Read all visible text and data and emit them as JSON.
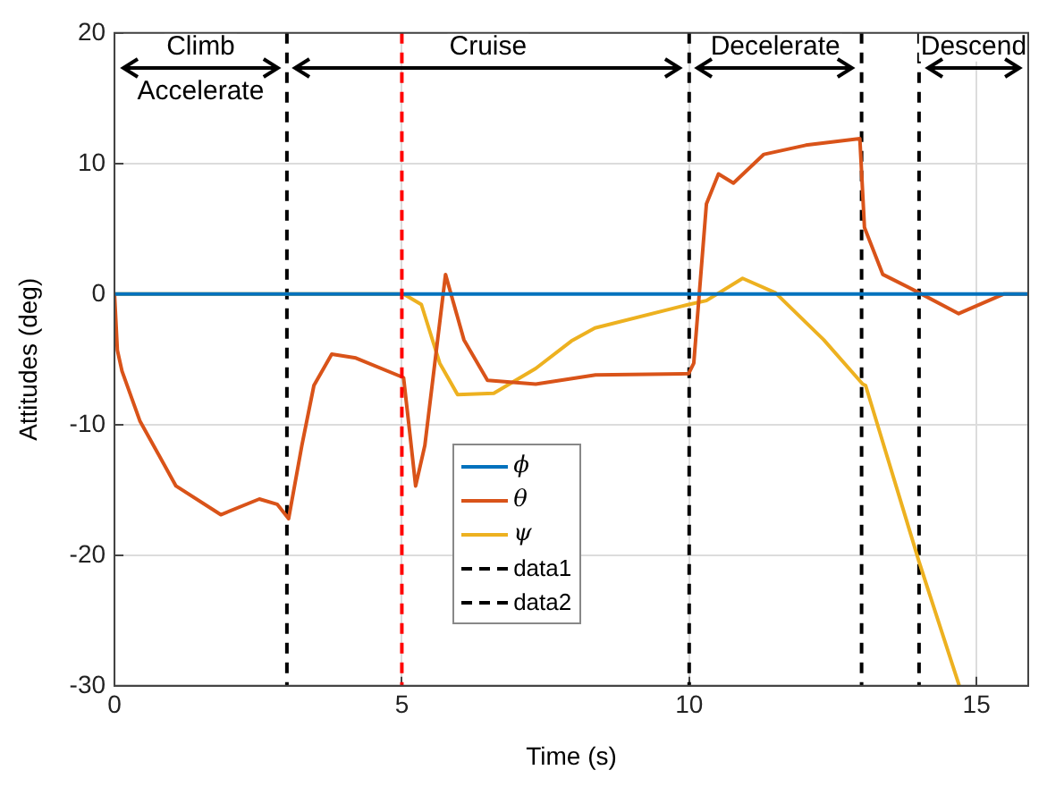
{
  "chart_data": {
    "type": "line",
    "xlabel": "Time (s)",
    "ylabel": "Attitudes (deg)",
    "xlim": [
      0,
      15.9
    ],
    "xticks": [
      0,
      5,
      10,
      15
    ],
    "ylim": [
      -30,
      20
    ],
    "yticks": [
      -30,
      -20,
      -10,
      0,
      10,
      20
    ],
    "grid": true,
    "legend": "bottom",
    "series": [
      {
        "name": "ϕ",
        "color": "#0072bd",
        "x": [
          0,
          5,
          10,
          15.9
        ],
        "values": [
          0,
          0,
          0,
          0
        ]
      },
      {
        "name": "θ",
        "color": "#d95319",
        "x": [
          0,
          0.05,
          0.13,
          0.44,
          1.07,
          1.85,
          2.52,
          2.83,
          3.03,
          3.26,
          3.47,
          3.78,
          4.2,
          5.03,
          5.14,
          5.24,
          5.4,
          5.76,
          6.08,
          6.49,
          7.33,
          8.37,
          9.99,
          10.08,
          10.3,
          10.51,
          10.77,
          11.3,
          12.03,
          12.97,
          13.05,
          13.37,
          14,
          14.69,
          15.47,
          15.9
        ],
        "values": [
          0,
          -4.3,
          -5.9,
          -9.7,
          -14.7,
          -16.9,
          -15.7,
          -16.1,
          -17.2,
          -11.6,
          -7,
          -4.6,
          -4.9,
          -6.4,
          -10.7,
          -14.7,
          -11.6,
          1.5,
          -3.5,
          -6.6,
          -6.9,
          -6.2,
          -6.1,
          -5.3,
          6.9,
          9.2,
          8.5,
          10.7,
          11.4,
          11.9,
          5.1,
          1.5,
          0.1,
          -1.5,
          0,
          0
        ]
      },
      {
        "name": "ψ",
        "color": "#edb120",
        "x": [
          0,
          5.03,
          5.34,
          5.66,
          5.97,
          6.6,
          7.33,
          7.95,
          8.36,
          9.99,
          10.3,
          10.93,
          11.5,
          12.34,
          13.02,
          13.07,
          14,
          14.7
        ],
        "values": [
          0,
          0,
          -0.8,
          -5.3,
          -7.7,
          -7.6,
          -5.7,
          -3.6,
          -2.6,
          -0.8,
          -0.5,
          1.2,
          0.1,
          -3.5,
          -6.9,
          -7,
          -20.5,
          -30
        ]
      },
      {
        "name": "data1",
        "color": "#000000",
        "line_style": "dashed",
        "x": [
          3,
          3,
          null,
          10,
          10,
          null,
          13,
          13
        ],
        "values": [
          20,
          -30,
          null,
          20,
          -30,
          null,
          20,
          -30
        ]
      },
      {
        "name": "data2",
        "color": "#000000",
        "line_style": "dashed",
        "x": [
          14,
          14
        ],
        "values": [
          20,
          -30
        ]
      }
    ],
    "ref_lines": [
      {
        "axis": "x",
        "value": 5,
        "color": "#ff0000",
        "line_style": "dashed"
      }
    ],
    "annotations": [
      "Climb",
      "Accelerate",
      "Cruise",
      "Decelerate",
      "Descend"
    ]
  }
}
